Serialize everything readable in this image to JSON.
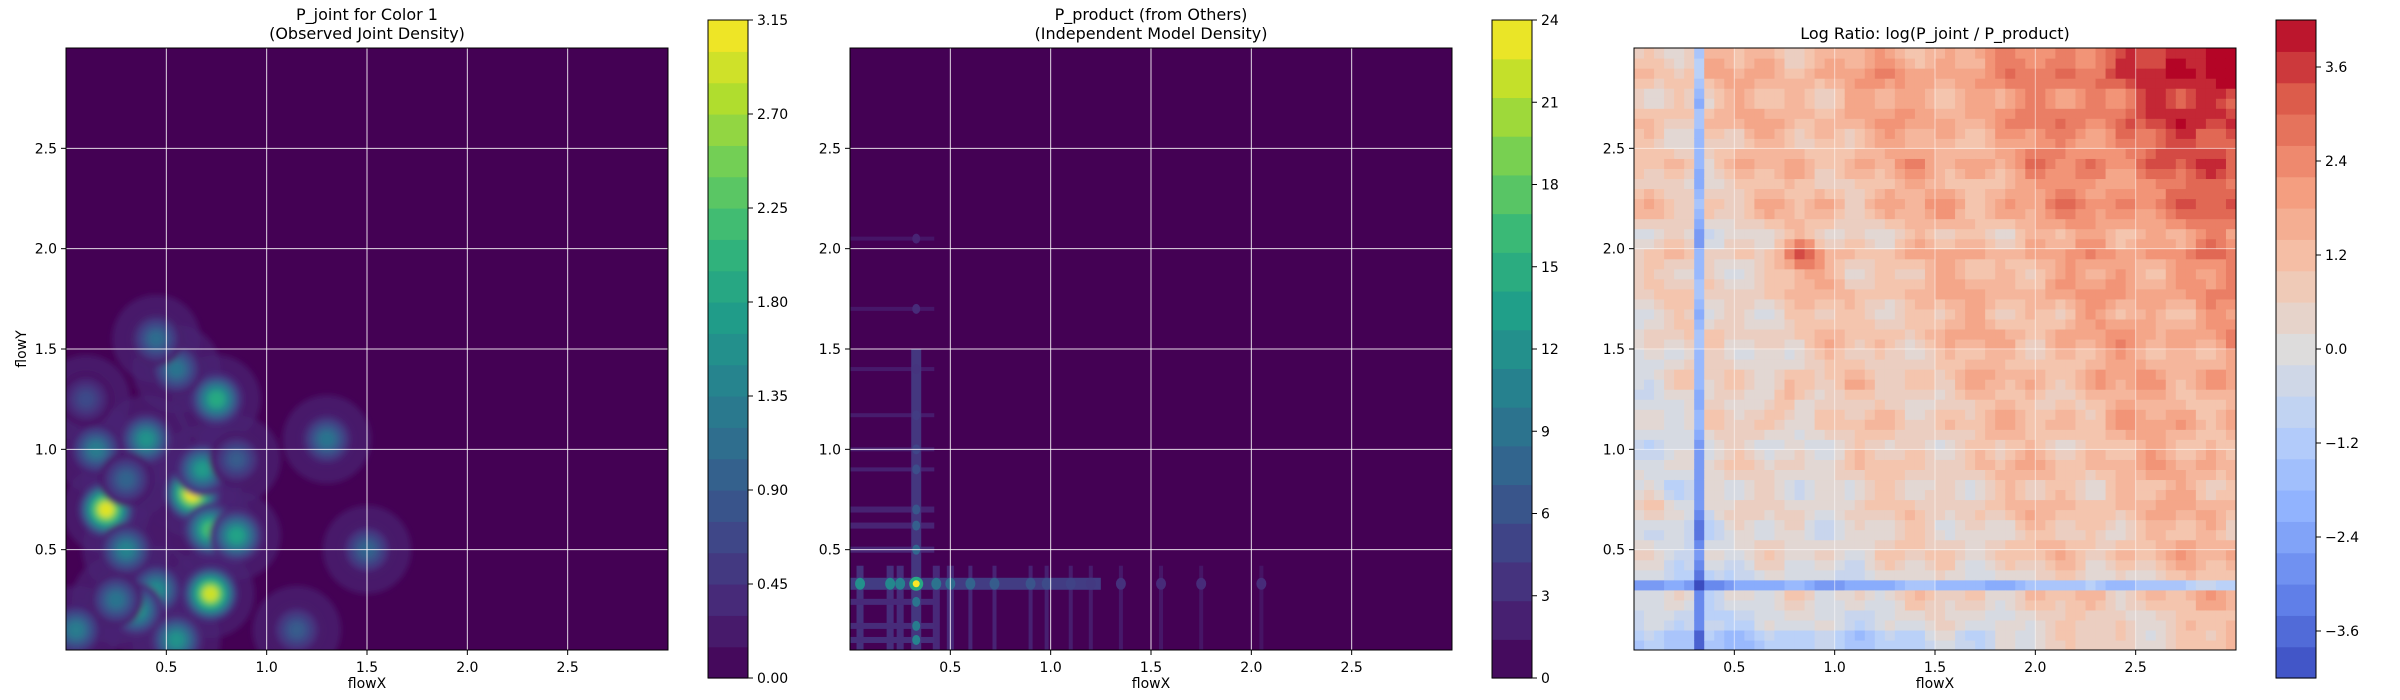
{
  "chart_data": [
    {
      "type": "heatmap",
      "title_line1": "P_joint for Color 1",
      "title_line2": "(Observed Joint Density)",
      "xlabel": "flowX",
      "ylabel": "flowY",
      "xlim": [
        0,
        3
      ],
      "ylim": [
        0,
        3
      ],
      "xticks": [
        "0.5",
        "1.0",
        "1.5",
        "2.0",
        "2.5"
      ],
      "yticks": [
        "0.5",
        "1.0",
        "1.5",
        "2.0",
        "2.5"
      ],
      "grid": true,
      "colormap": "viridis",
      "colorbar_range": [
        0,
        3.15
      ],
      "colorbar_ticks": [
        "0.00",
        "0.45",
        "0.90",
        "1.35",
        "1.80",
        "2.25",
        "2.70",
        "3.15"
      ],
      "levels": 21,
      "peaks": [
        {
          "x": 0.2,
          "y": 0.7,
          "value": 3.0
        },
        {
          "x": 0.63,
          "y": 0.78,
          "value": 3.1
        },
        {
          "x": 0.72,
          "y": 0.28,
          "value": 2.9
        },
        {
          "x": 0.72,
          "y": 0.6,
          "value": 2.2
        },
        {
          "x": 0.75,
          "y": 1.25,
          "value": 1.9
        },
        {
          "x": 0.68,
          "y": 0.9,
          "value": 1.7
        },
        {
          "x": 0.4,
          "y": 1.05,
          "value": 1.6
        },
        {
          "x": 0.85,
          "y": 0.57,
          "value": 1.8
        },
        {
          "x": 0.15,
          "y": 1.0,
          "value": 1.3
        },
        {
          "x": 0.3,
          "y": 0.5,
          "value": 1.4
        },
        {
          "x": 0.45,
          "y": 0.3,
          "value": 1.5
        },
        {
          "x": 0.35,
          "y": 0.2,
          "value": 1.7
        },
        {
          "x": 0.55,
          "y": 0.05,
          "value": 1.6
        },
        {
          "x": 0.05,
          "y": 0.1,
          "value": 1.3
        },
        {
          "x": 0.25,
          "y": 0.25,
          "value": 1.2
        },
        {
          "x": 0.55,
          "y": 1.4,
          "value": 1.2
        },
        {
          "x": 0.45,
          "y": 1.55,
          "value": 1.1
        },
        {
          "x": 1.3,
          "y": 1.05,
          "value": 1.2
        },
        {
          "x": 1.5,
          "y": 0.5,
          "value": 1.0
        },
        {
          "x": 1.15,
          "y": 0.1,
          "value": 0.9
        },
        {
          "x": 0.3,
          "y": 0.85,
          "value": 1.0
        },
        {
          "x": 0.1,
          "y": 1.25,
          "value": 0.7
        },
        {
          "x": 0.85,
          "y": 0.95,
          "value": 0.9
        }
      ]
    },
    {
      "type": "heatmap",
      "title_line1": "P_product (from Others)",
      "title_line2": "(Independent Model Density)",
      "xlabel": "flowX",
      "ylabel": "",
      "xlim": [
        0,
        3
      ],
      "ylim": [
        0,
        3
      ],
      "xticks": [
        "0.5",
        "1.0",
        "1.5",
        "2.0",
        "2.5"
      ],
      "yticks": [
        "0.5",
        "1.0",
        "1.5",
        "2.0",
        "2.5"
      ],
      "grid": true,
      "colormap": "viridis",
      "colorbar_range": [
        0,
        24
      ],
      "colorbar_ticks": [
        "0",
        "3",
        "6",
        "9",
        "12",
        "15",
        "18",
        "21",
        "24"
      ],
      "levels": 17,
      "x_marginal_peaks": [
        0.05,
        0.2,
        0.25,
        0.33,
        0.43,
        0.5,
        0.6,
        0.72,
        0.9,
        0.98,
        1.1,
        1.2,
        1.35,
        1.55,
        1.75,
        2.05
      ],
      "y_marginal_peaks": [
        0.05,
        0.12,
        0.24,
        0.33,
        0.5,
        0.62,
        0.7,
        0.9,
        1.0,
        1.17,
        1.4,
        1.7,
        2.05
      ],
      "peak": {
        "x": 0.33,
        "y": 0.33,
        "value": 24
      }
    },
    {
      "type": "heatmap",
      "title_line1": "Log Ratio: log(P_joint / P_product)",
      "title_line2": "",
      "xlabel": "flowX",
      "ylabel": "",
      "xlim": [
        0,
        3
      ],
      "ylim": [
        0,
        3
      ],
      "xticks": [
        "0.5",
        "1.0",
        "1.5",
        "2.0",
        "2.5"
      ],
      "yticks": [
        "0.5",
        "1.0",
        "1.5",
        "2.0",
        "2.5"
      ],
      "grid": true,
      "colormap": "coolwarm",
      "colorbar_range": [
        -4.2,
        4.2
      ],
      "colorbar_ticks": [
        "−3.6",
        "−2.4",
        "−1.2",
        "0.0",
        "1.2",
        "2.4",
        "3.6"
      ],
      "levels": 21,
      "trend": "values increase toward upper-right (red, up to about 4); blue bands along x≈0.33, y≈0.33 and y≈2.05 (down to about −3)"
    }
  ]
}
